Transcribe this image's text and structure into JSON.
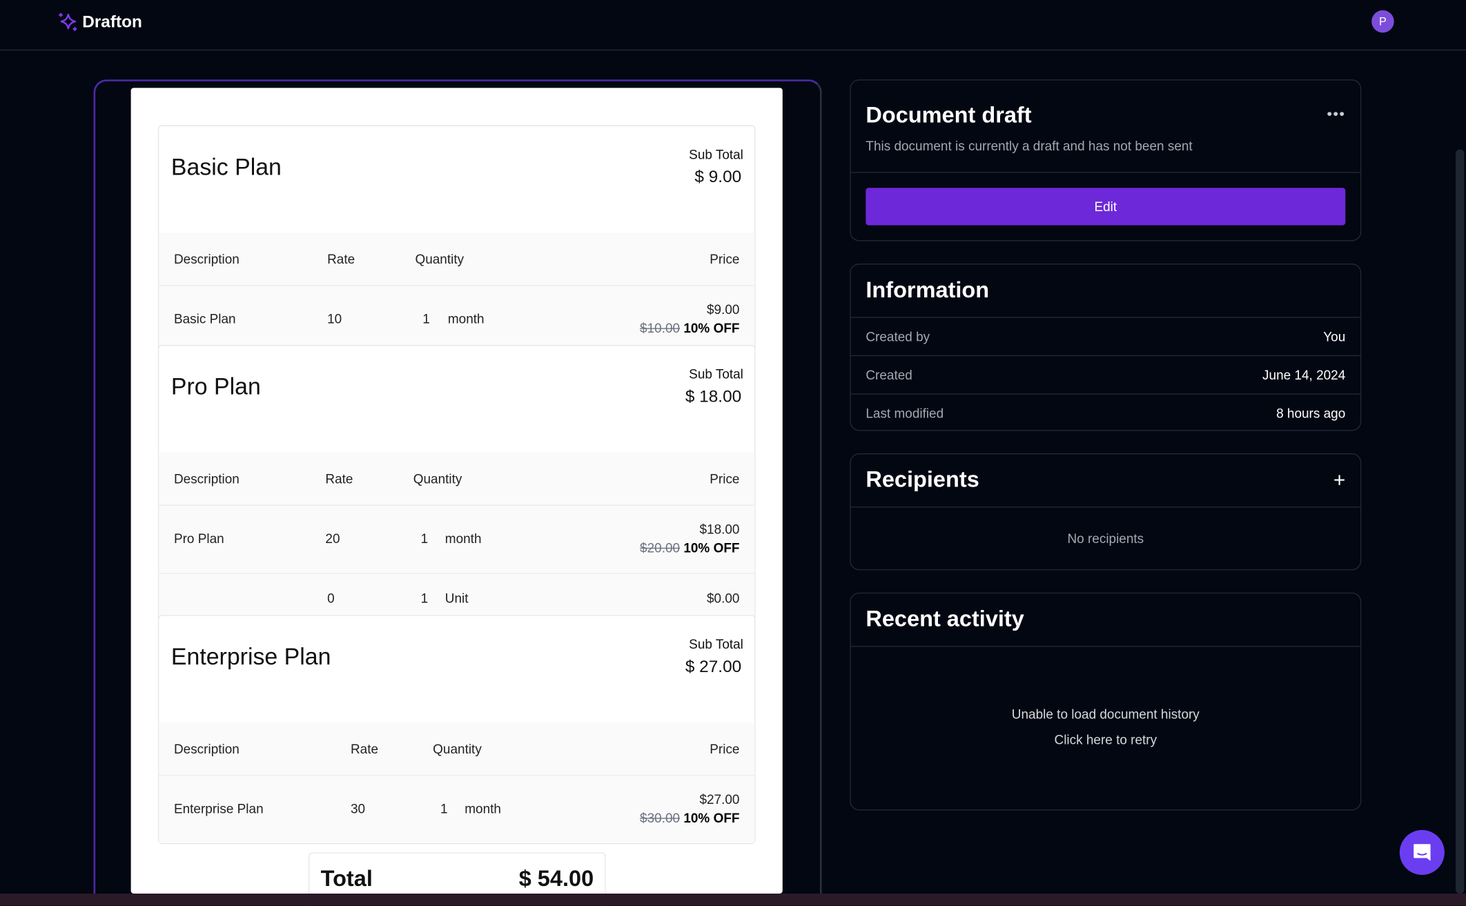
{
  "app": {
    "name": "Drafton",
    "avatar_initial": "P",
    "accent": "#6d28d9"
  },
  "document": {
    "plans": [
      {
        "title": "Basic Plan",
        "subtotal_label": "Sub Total",
        "subtotal": "$ 9.00",
        "headers": {
          "description": "Description",
          "rate": "Rate",
          "quantity": "Quantity",
          "price": "Price"
        },
        "items": [
          {
            "description": "Basic Plan",
            "rate": "10",
            "qty": "1",
            "unit": "month",
            "price": "$9.00",
            "original": "$10.00",
            "discount": "10% OFF"
          }
        ]
      },
      {
        "title": "Pro Plan",
        "subtotal_label": "Sub Total",
        "subtotal": "$ 18.00",
        "headers": {
          "description": "Description",
          "rate": "Rate",
          "quantity": "Quantity",
          "price": "Price"
        },
        "items": [
          {
            "description": "Pro Plan",
            "rate": "20",
            "qty": "1",
            "unit": "month",
            "price": "$18.00",
            "original": "$20.00",
            "discount": "10% OFF"
          },
          {
            "description": "",
            "rate": "0",
            "qty": "1",
            "unit": "Unit",
            "price": "$0.00"
          }
        ]
      },
      {
        "title": "Enterprise Plan",
        "subtotal_label": "Sub Total",
        "subtotal": "$ 27.00",
        "headers": {
          "description": "Description",
          "rate": "Rate",
          "quantity": "Quantity",
          "price": "Price"
        },
        "items": [
          {
            "description": "Enterprise Plan",
            "rate": "30",
            "qty": "1",
            "unit": "month",
            "price": "$27.00",
            "original": "$30.00",
            "discount": "10% OFF"
          }
        ]
      }
    ],
    "total_label": "Total",
    "total": "$ 54.00"
  },
  "draft": {
    "title": "Document draft",
    "subtitle": "This document is currently a draft and has not been sent",
    "edit_label": "Edit"
  },
  "info": {
    "title": "Information",
    "rows": [
      {
        "label": "Created by",
        "value": "You"
      },
      {
        "label": "Created",
        "value": "June 14, 2024"
      },
      {
        "label": "Last modified",
        "value": "8 hours ago"
      }
    ]
  },
  "recipients": {
    "title": "Recipients",
    "empty": "No recipients"
  },
  "activity": {
    "title": "Recent activity",
    "error": "Unable to load document history",
    "retry": "Click here to retry"
  }
}
